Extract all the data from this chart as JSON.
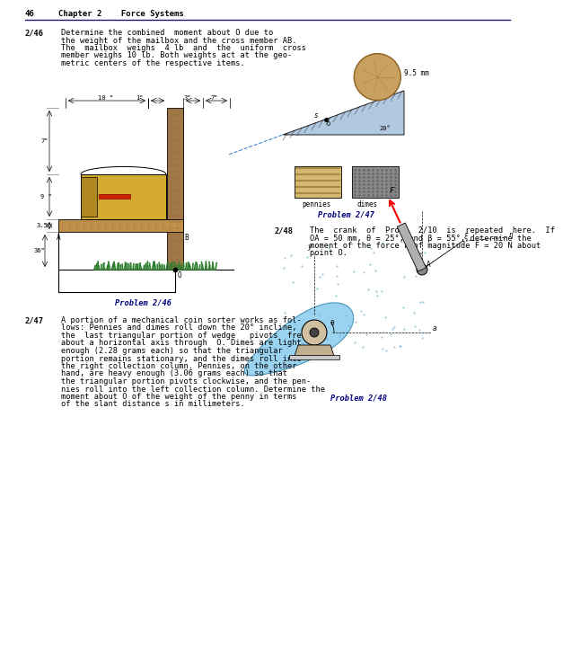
{
  "page_number": "46",
  "chapter": "Chapter 2    Force Systems",
  "background_color": "#ffffff",
  "header_line_color": "#1a1a6e",
  "prob246_id": "2/46",
  "prob246_text_lines": [
    "Determine the combined  moment about O due to",
    "the weight of the mailbox and the cross member AB.",
    "The  mailbox  weighs  4 lb  and  the  uniform  cross",
    "member weighs 10 lb. Both weights act at the geo-",
    "metric centers of the respective items."
  ],
  "prob247_id": "2/47",
  "prob247_text_lines": [
    "A portion of a mechanical coin sorter works as fol-",
    "lows: Pennies and dimes roll down the 20° incline,",
    "the  last triangular portion of wedge   pivots  freely",
    "about a horizontal axis through  O. Dimes are light",
    "enough (2.28 grams each) so that the triangular",
    "portion remains stationary, and the dimes roll into",
    "the right collection column. Pennies, on the other",
    "hand, are heavy enough (3.06 grams each) so that",
    "the triangular portion pivots clockwise, and the pen-",
    "nies roll into the left collection column. Determine the",
    "moment about O of the weight of the penny in terms",
    "of the slant distance s in millimeters."
  ],
  "prob248_id": "2/48",
  "prob248_text_lines": [
    "The  crank  of  Prob.  2/10  is  repeated  here.  If",
    "OA = 50 mm, θ = 25°, and β = 55°, determine the",
    "moment of the force F of magnitude F = 20 N about",
    "point O."
  ],
  "label246": "Problem 2/46",
  "label247": "Problem 2/47",
  "label248": "Problem 2/48"
}
